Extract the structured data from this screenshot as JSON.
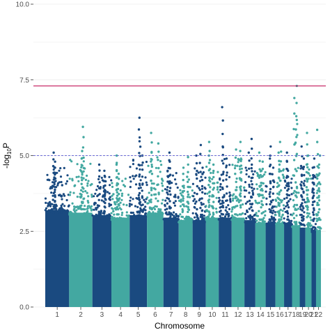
{
  "chart_data": {
    "type": "scatter",
    "subtype": "manhattan",
    "xlabel": "Chromosome",
    "ylabel_prefix": "-log",
    "ylabel_sub": "10",
    "ylabel_suffix": "P",
    "ylim": [
      0,
      10
    ],
    "y_ticks": [
      0,
      2.5,
      5,
      7.5,
      10
    ],
    "y_tick_labels": [
      "0.0",
      "2.5",
      "5.0",
      "7.5",
      "10.0"
    ],
    "grid": true,
    "genome_wide_threshold": 7.3,
    "suggestive_threshold": 5.0,
    "colors": {
      "odd": "#1a4a80",
      "even": "#43a8a1",
      "threshold_line": "#c2185b",
      "suggestive_line": "#6b6bd6",
      "grid": "#ebebeb"
    },
    "chromosomes": [
      {
        "label": "1",
        "base_max": 3.9,
        "peaks": [
          5.1,
          4.8,
          4.6
        ]
      },
      {
        "label": "2",
        "base_max": 3.8,
        "peaks": [
          5.95,
          5.15,
          4.9
        ]
      },
      {
        "label": "3",
        "base_max": 3.7,
        "peaks": [
          4.7,
          4.5,
          4.3
        ]
      },
      {
        "label": "4",
        "base_max": 3.6,
        "peaks": [
          5.0,
          4.7,
          4.4
        ]
      },
      {
        "label": "5",
        "base_max": 3.7,
        "peaks": [
          6.25,
          5.6,
          5.0
        ]
      },
      {
        "label": "6",
        "base_max": 3.8,
        "peaks": [
          5.75,
          5.4,
          5.1
        ]
      },
      {
        "label": "7",
        "base_max": 3.6,
        "peaks": [
          5.1,
          4.8,
          4.5
        ]
      },
      {
        "label": "8",
        "base_max": 3.5,
        "peaks": [
          4.95,
          4.6,
          4.3
        ]
      },
      {
        "label": "9",
        "base_max": 3.5,
        "peaks": [
          5.35,
          5.0,
          4.6
        ]
      },
      {
        "label": "10",
        "base_max": 3.6,
        "peaks": [
          5.45,
          5.0,
          4.7
        ]
      },
      {
        "label": "11",
        "base_max": 3.6,
        "peaks": [
          6.6,
          5.3,
          4.9
        ]
      },
      {
        "label": "12",
        "base_max": 3.6,
        "peaks": [
          5.45,
          5.2,
          4.9
        ]
      },
      {
        "label": "13",
        "base_max": 3.5,
        "peaks": [
          5.55,
          5.1,
          4.7
        ]
      },
      {
        "label": "14",
        "base_max": 3.4,
        "peaks": [
          5.1,
          4.8,
          4.5
        ]
      },
      {
        "label": "15",
        "base_max": 3.4,
        "peaks": [
          5.3,
          4.9,
          4.6
        ]
      },
      {
        "label": "16",
        "base_max": 3.4,
        "peaks": [
          5.45,
          5.1,
          4.7
        ]
      },
      {
        "label": "17",
        "base_max": 3.4,
        "peaks": [
          5.1,
          4.8,
          4.5
        ]
      },
      {
        "label": "18",
        "base_max": 3.3,
        "peaks": [
          7.3,
          6.9,
          6.3
        ]
      },
      {
        "label": "19",
        "base_max": 3.2,
        "peaks": [
          5.3,
          4.9,
          4.6
        ]
      },
      {
        "label": "20",
        "base_max": 3.2,
        "peaks": [
          5.75,
          5.0,
          4.7
        ]
      },
      {
        "label": "21",
        "base_max": 3.1,
        "peaks": [
          4.9,
          4.6,
          4.3
        ]
      },
      {
        "label": "22",
        "base_max": 3.1,
        "peaks": [
          5.85,
          5.0,
          4.6
        ]
      }
    ]
  }
}
